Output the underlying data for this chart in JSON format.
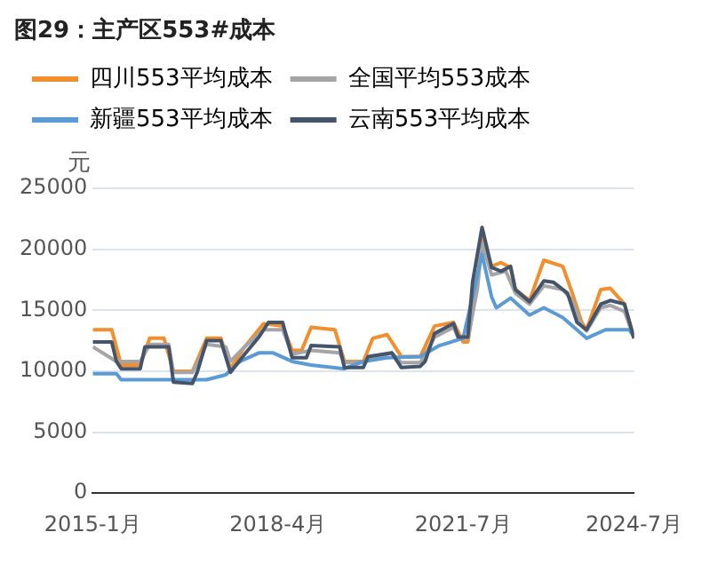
{
  "chart_data": {
    "type": "line",
    "title": "图29：主产区553#成本",
    "ylabel": "元",
    "xlim": [
      "2015-01",
      "2024-07"
    ],
    "xticks": [
      {
        "value": "2015-01",
        "label": "2015-1月"
      },
      {
        "value": "2018-04",
        "label": "2018-4月"
      },
      {
        "value": "2021-07",
        "label": "2021-7月"
      },
      {
        "value": "2024-07",
        "label": "2024-7月"
      }
    ],
    "ylim": [
      0,
      25000
    ],
    "yticks": [
      0,
      5000,
      10000,
      15000,
      20000,
      25000
    ],
    "grid": "y",
    "legend": "top",
    "marker": "none",
    "line_style": "solid",
    "series": [
      {
        "name": "四川553平均成本",
        "color": "#f28e2b",
        "x": [
          "2015-01",
          "2015-05",
          "2015-07",
          "2015-11",
          "2016-01",
          "2016-04",
          "2016-06",
          "2016-10",
          "2017-01",
          "2017-04",
          "2017-06",
          "2017-09",
          "2018-01",
          "2018-05",
          "2018-07",
          "2018-09",
          "2018-11",
          "2019-04",
          "2019-06",
          "2019-10",
          "2019-12",
          "2020-03",
          "2020-06",
          "2020-10",
          "2021-01",
          "2021-05",
          "2021-07",
          "2021-08",
          "2021-10",
          "2021-11",
          "2022-01",
          "2022-03",
          "2022-05",
          "2022-06",
          "2022-09",
          "2022-12",
          "2023-04",
          "2023-06",
          "2023-08",
          "2023-09",
          "2023-12",
          "2024-02",
          "2024-05",
          "2024-07"
        ],
        "values": [
          13400,
          13400,
          10500,
          10500,
          12700,
          12700,
          10000,
          10000,
          12700,
          12700,
          10200,
          12000,
          13900,
          13700,
          11700,
          11700,
          13600,
          13400,
          10800,
          10800,
          12700,
          13000,
          11200,
          11200,
          13700,
          14000,
          12400,
          12400,
          17300,
          21100,
          18600,
          18900,
          18500,
          16700,
          15800,
          19100,
          18600,
          16400,
          14000,
          13400,
          16700,
          16800,
          15500,
          12700
        ]
      },
      {
        "name": "全国平均553成本",
        "color": "#a5a5a5",
        "x": [
          "2015-01",
          "2015-06",
          "2015-11",
          "2016-01",
          "2016-05",
          "2016-06",
          "2016-10",
          "2017-01",
          "2017-05",
          "2017-06",
          "2017-09",
          "2018-01",
          "2018-05",
          "2018-07",
          "2018-11",
          "2019-05",
          "2019-06",
          "2019-10",
          "2019-12",
          "2020-04",
          "2020-06",
          "2020-10",
          "2021-01",
          "2021-05",
          "2021-06",
          "2021-08",
          "2021-10",
          "2021-11",
          "2022-01",
          "2022-04",
          "2022-06",
          "2022-09",
          "2022-12",
          "2023-04",
          "2023-06",
          "2023-08",
          "2023-09",
          "2023-12",
          "2024-02",
          "2024-05",
          "2024-07"
        ],
        "values": [
          12000,
          10800,
          10800,
          12200,
          12200,
          9900,
          9900,
          12200,
          12000,
          10800,
          12000,
          13400,
          13400,
          11400,
          11700,
          11500,
          10700,
          10700,
          11100,
          11500,
          10700,
          10700,
          12800,
          13600,
          12700,
          12700,
          16700,
          20500,
          17900,
          18200,
          16400,
          15500,
          17000,
          16700,
          15800,
          13700,
          13300,
          15200,
          15400,
          14900,
          12700
        ]
      },
      {
        "name": "新疆553平均成本",
        "color": "#5b9bd5",
        "x": [
          "2015-01",
          "2015-06",
          "2015-07",
          "2017-01",
          "2017-05",
          "2017-08",
          "2017-12",
          "2018-03",
          "2018-07",
          "2018-11",
          "2019-06",
          "2019-10",
          "2020-03",
          "2020-10",
          "2021-02",
          "2021-07",
          "2021-09",
          "2021-11",
          "2022-01",
          "2022-02",
          "2022-05",
          "2022-09",
          "2022-12",
          "2023-04",
          "2023-09",
          "2024-01",
          "2024-06",
          "2024-07"
        ],
        "values": [
          9800,
          9800,
          9300,
          9300,
          9700,
          10800,
          11500,
          11500,
          10800,
          10500,
          10200,
          10800,
          11100,
          11200,
          12100,
          12700,
          16100,
          19600,
          16100,
          15200,
          16000,
          14600,
          15200,
          14400,
          12700,
          13400,
          13400,
          12800
        ]
      },
      {
        "name": "云南553平均成本",
        "color": "#44546a",
        "x": [
          "2015-01",
          "2015-05",
          "2015-06",
          "2015-07",
          "2015-11",
          "2015-12",
          "2016-05",
          "2016-06",
          "2016-10",
          "2016-11",
          "2017-01",
          "2017-04",
          "2017-06",
          "2017-09",
          "2017-12",
          "2018-02",
          "2018-05",
          "2018-07",
          "2018-10",
          "2018-11",
          "2019-05",
          "2019-06",
          "2019-10",
          "2019-11",
          "2020-04",
          "2020-06",
          "2020-10",
          "2020-11",
          "2021-01",
          "2021-05",
          "2021-06",
          "2021-08",
          "2021-09",
          "2021-11",
          "2022-01",
          "2022-03",
          "2022-05",
          "2022-06",
          "2022-09",
          "2022-12",
          "2023-02",
          "2023-05",
          "2023-07",
          "2023-09",
          "2023-12",
          "2024-02",
          "2024-05",
          "2024-07"
        ],
        "values": [
          12400,
          12400,
          10800,
          10200,
          10200,
          12000,
          12000,
          9100,
          9000,
          9900,
          12500,
          12500,
          9900,
          11400,
          12800,
          14000,
          14000,
          11100,
          11100,
          12100,
          12000,
          10300,
          10300,
          11200,
          11500,
          10300,
          10400,
          10800,
          13100,
          13900,
          12800,
          12800,
          17300,
          21800,
          18500,
          18200,
          18600,
          16700,
          15700,
          17400,
          17300,
          16400,
          14000,
          13400,
          15500,
          15800,
          15500,
          12700
        ]
      }
    ]
  }
}
